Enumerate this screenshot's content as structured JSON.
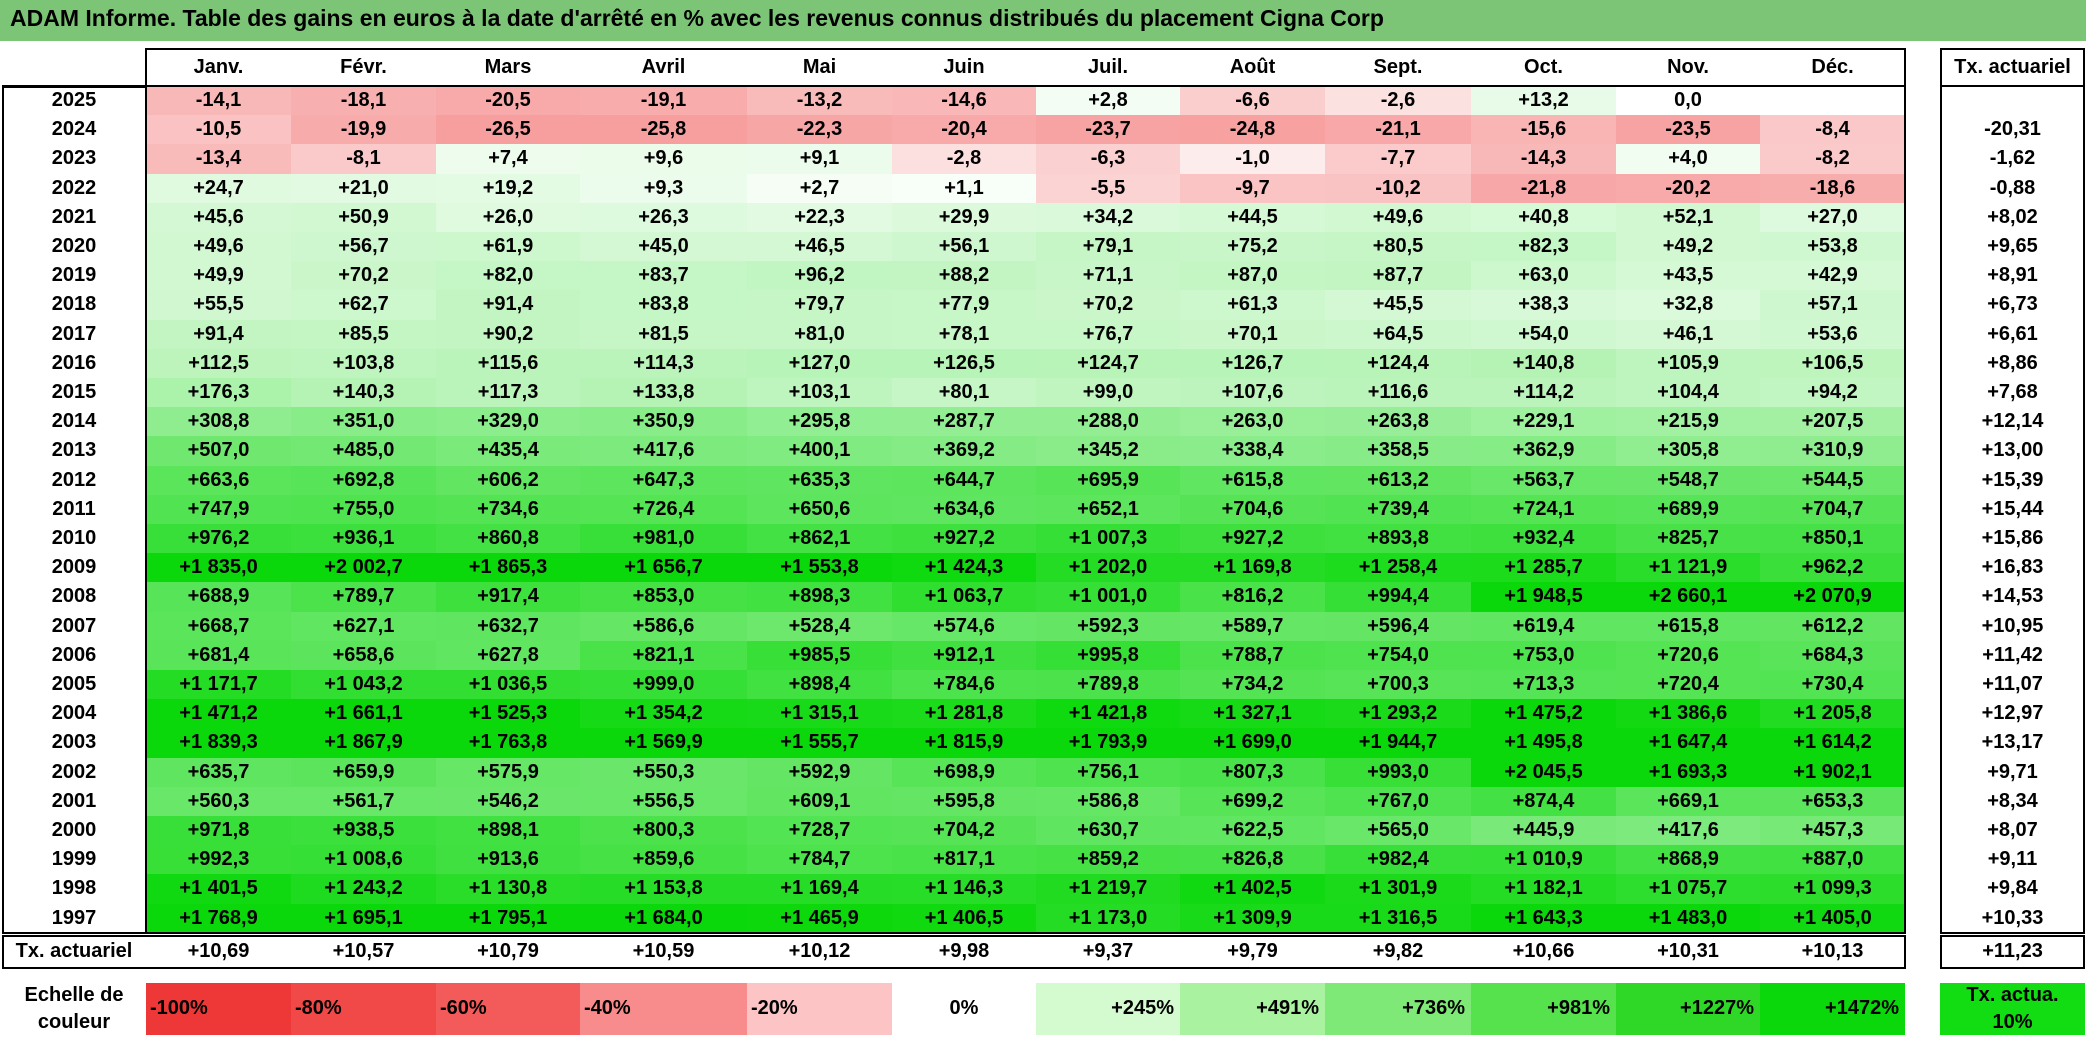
{
  "title": "ADAM Informe. Table des gains en euros à la date d'arrêté en % avec les revenus connus distribués du placement Cigna Corp",
  "chart_data": {
    "type": "heatmap",
    "title": "ADAM Informe. Table des gains en euros à la date d'arrêté en % avec les revenus connus distribués du placement Cigna Corp",
    "columns": [
      "Janv.",
      "Févr.",
      "Mars",
      "Avril",
      "Mai",
      "Juin",
      "Juil.",
      "Août",
      "Sept.",
      "Oct.",
      "Nov.",
      "Déc."
    ],
    "annual_header": "Tx. actuariel",
    "rows": [
      {
        "year": "2025",
        "cells": [
          "-14,1",
          "-18,1",
          "-20,5",
          "-19,1",
          "-13,2",
          "-14,6",
          "+2,8",
          "-6,6",
          "-2,6",
          "+13,2",
          "0,0",
          ""
        ],
        "values": [
          -14.1,
          -18.1,
          -20.5,
          -19.1,
          -13.2,
          -14.6,
          2.8,
          -6.6,
          -2.6,
          13.2,
          0.0,
          null
        ],
        "annual": ""
      },
      {
        "year": "2024",
        "cells": [
          "-10,5",
          "-19,9",
          "-26,5",
          "-25,8",
          "-22,3",
          "-20,4",
          "-23,7",
          "-24,8",
          "-21,1",
          "-15,6",
          "-23,5",
          "-8,4"
        ],
        "values": [
          -10.5,
          -19.9,
          -26.5,
          -25.8,
          -22.3,
          -20.4,
          -23.7,
          -24.8,
          -21.1,
          -15.6,
          -23.5,
          -8.4
        ],
        "annual": "-20,31"
      },
      {
        "year": "2023",
        "cells": [
          "-13,4",
          "-8,1",
          "+7,4",
          "+9,6",
          "+9,1",
          "-2,8",
          "-6,3",
          "-1,0",
          "-7,7",
          "-14,3",
          "+4,0",
          "-8,2"
        ],
        "values": [
          -13.4,
          -8.1,
          7.4,
          9.6,
          9.1,
          -2.8,
          -6.3,
          -1.0,
          -7.7,
          -14.3,
          4.0,
          -8.2
        ],
        "annual": "-1,62"
      },
      {
        "year": "2022",
        "cells": [
          "+24,7",
          "+21,0",
          "+19,2",
          "+9,3",
          "+2,7",
          "+1,1",
          "-5,5",
          "-9,7",
          "-10,2",
          "-21,8",
          "-20,2",
          "-18,6"
        ],
        "values": [
          24.7,
          21.0,
          19.2,
          9.3,
          2.7,
          1.1,
          -5.5,
          -9.7,
          -10.2,
          -21.8,
          -20.2,
          -18.6
        ],
        "annual": "-0,88"
      },
      {
        "year": "2021",
        "cells": [
          "+45,6",
          "+50,9",
          "+26,0",
          "+26,3",
          "+22,3",
          "+29,9",
          "+34,2",
          "+44,5",
          "+49,6",
          "+40,8",
          "+52,1",
          "+27,0"
        ],
        "values": [
          45.6,
          50.9,
          26.0,
          26.3,
          22.3,
          29.9,
          34.2,
          44.5,
          49.6,
          40.8,
          52.1,
          27.0
        ],
        "annual": "+8,02"
      },
      {
        "year": "2020",
        "cells": [
          "+49,6",
          "+56,7",
          "+61,9",
          "+45,0",
          "+46,5",
          "+56,1",
          "+79,1",
          "+75,2",
          "+80,5",
          "+82,3",
          "+49,2",
          "+53,8"
        ],
        "values": [
          49.6,
          56.7,
          61.9,
          45.0,
          46.5,
          56.1,
          79.1,
          75.2,
          80.5,
          82.3,
          49.2,
          53.8
        ],
        "annual": "+9,65"
      },
      {
        "year": "2019",
        "cells": [
          "+49,9",
          "+70,2",
          "+82,0",
          "+83,7",
          "+96,2",
          "+88,2",
          "+71,1",
          "+87,0",
          "+87,7",
          "+63,0",
          "+43,5",
          "+42,9"
        ],
        "values": [
          49.9,
          70.2,
          82.0,
          83.7,
          96.2,
          88.2,
          71.1,
          87.0,
          87.7,
          63.0,
          43.5,
          42.9
        ],
        "annual": "+8,91"
      },
      {
        "year": "2018",
        "cells": [
          "+55,5",
          "+62,7",
          "+91,4",
          "+83,8",
          "+79,7",
          "+77,9",
          "+70,2",
          "+61,3",
          "+45,5",
          "+38,3",
          "+32,8",
          "+57,1"
        ],
        "values": [
          55.5,
          62.7,
          91.4,
          83.8,
          79.7,
          77.9,
          70.2,
          61.3,
          45.5,
          38.3,
          32.8,
          57.1
        ],
        "annual": "+6,73"
      },
      {
        "year": "2017",
        "cells": [
          "+91,4",
          "+85,5",
          "+90,2",
          "+81,5",
          "+81,0",
          "+78,1",
          "+76,7",
          "+70,1",
          "+64,5",
          "+54,0",
          "+46,1",
          "+53,6"
        ],
        "values": [
          91.4,
          85.5,
          90.2,
          81.5,
          81.0,
          78.1,
          76.7,
          70.1,
          64.5,
          54.0,
          46.1,
          53.6
        ],
        "annual": "+6,61"
      },
      {
        "year": "2016",
        "cells": [
          "+112,5",
          "+103,8",
          "+115,6",
          "+114,3",
          "+127,0",
          "+126,5",
          "+124,7",
          "+126,7",
          "+124,4",
          "+140,8",
          "+105,9",
          "+106,5"
        ],
        "values": [
          112.5,
          103.8,
          115.6,
          114.3,
          127.0,
          126.5,
          124.7,
          126.7,
          124.4,
          140.8,
          105.9,
          106.5
        ],
        "annual": "+8,86"
      },
      {
        "year": "2015",
        "cells": [
          "+176,3",
          "+140,3",
          "+117,3",
          "+133,8",
          "+103,1",
          "+80,1",
          "+99,0",
          "+107,6",
          "+116,6",
          "+114,2",
          "+104,4",
          "+94,2"
        ],
        "values": [
          176.3,
          140.3,
          117.3,
          133.8,
          103.1,
          80.1,
          99.0,
          107.6,
          116.6,
          114.2,
          104.4,
          94.2
        ],
        "annual": "+7,68"
      },
      {
        "year": "2014",
        "cells": [
          "+308,8",
          "+351,0",
          "+329,0",
          "+350,9",
          "+295,8",
          "+287,7",
          "+288,0",
          "+263,0",
          "+263,8",
          "+229,1",
          "+215,9",
          "+207,5"
        ],
        "values": [
          308.8,
          351.0,
          329.0,
          350.9,
          295.8,
          287.7,
          288.0,
          263.0,
          263.8,
          229.1,
          215.9,
          207.5
        ],
        "annual": "+12,14"
      },
      {
        "year": "2013",
        "cells": [
          "+507,0",
          "+485,0",
          "+435,4",
          "+417,6",
          "+400,1",
          "+369,2",
          "+345,2",
          "+338,4",
          "+358,5",
          "+362,9",
          "+305,8",
          "+310,9"
        ],
        "values": [
          507.0,
          485.0,
          435.4,
          417.6,
          400.1,
          369.2,
          345.2,
          338.4,
          358.5,
          362.9,
          305.8,
          310.9
        ],
        "annual": "+13,00"
      },
      {
        "year": "2012",
        "cells": [
          "+663,6",
          "+692,8",
          "+606,2",
          "+647,3",
          "+635,3",
          "+644,7",
          "+695,9",
          "+615,8",
          "+613,2",
          "+563,7",
          "+548,7",
          "+544,5"
        ],
        "values": [
          663.6,
          692.8,
          606.2,
          647.3,
          635.3,
          644.7,
          695.9,
          615.8,
          613.2,
          563.7,
          548.7,
          544.5
        ],
        "annual": "+15,39"
      },
      {
        "year": "2011",
        "cells": [
          "+747,9",
          "+755,0",
          "+734,6",
          "+726,4",
          "+650,6",
          "+634,6",
          "+652,1",
          "+704,6",
          "+739,4",
          "+724,1",
          "+689,9",
          "+704,7"
        ],
        "values": [
          747.9,
          755.0,
          734.6,
          726.4,
          650.6,
          634.6,
          652.1,
          704.6,
          739.4,
          724.1,
          689.9,
          704.7
        ],
        "annual": "+15,44"
      },
      {
        "year": "2010",
        "cells": [
          "+976,2",
          "+936,1",
          "+860,8",
          "+981,0",
          "+862,1",
          "+927,2",
          "+1 007,3",
          "+927,2",
          "+893,8",
          "+932,4",
          "+825,7",
          "+850,1"
        ],
        "values": [
          976.2,
          936.1,
          860.8,
          981.0,
          862.1,
          927.2,
          1007.3,
          927.2,
          893.8,
          932.4,
          825.7,
          850.1
        ],
        "annual": "+15,86"
      },
      {
        "year": "2009",
        "cells": [
          "+1 835,0",
          "+2 002,7",
          "+1 865,3",
          "+1 656,7",
          "+1 553,8",
          "+1 424,3",
          "+1 202,0",
          "+1 169,8",
          "+1 258,4",
          "+1 285,7",
          "+1 121,9",
          "+962,2"
        ],
        "values": [
          1835.0,
          2002.7,
          1865.3,
          1656.7,
          1553.8,
          1424.3,
          1202.0,
          1169.8,
          1258.4,
          1285.7,
          1121.9,
          962.2
        ],
        "annual": "+16,83"
      },
      {
        "year": "2008",
        "cells": [
          "+688,9",
          "+789,7",
          "+917,4",
          "+853,0",
          "+898,3",
          "+1 063,7",
          "+1 001,0",
          "+816,2",
          "+994,4",
          "+1 948,5",
          "+2 660,1",
          "+2 070,9"
        ],
        "values": [
          688.9,
          789.7,
          917.4,
          853.0,
          898.3,
          1063.7,
          1001.0,
          816.2,
          994.4,
          1948.5,
          2660.1,
          2070.9
        ],
        "annual": "+14,53"
      },
      {
        "year": "2007",
        "cells": [
          "+668,7",
          "+627,1",
          "+632,7",
          "+586,6",
          "+528,4",
          "+574,6",
          "+592,3",
          "+589,7",
          "+596,4",
          "+619,4",
          "+615,8",
          "+612,2"
        ],
        "values": [
          668.7,
          627.1,
          632.7,
          586.6,
          528.4,
          574.6,
          592.3,
          589.7,
          596.4,
          619.4,
          615.8,
          612.2
        ],
        "annual": "+10,95"
      },
      {
        "year": "2006",
        "cells": [
          "+681,4",
          "+658,6",
          "+627,8",
          "+821,1",
          "+985,5",
          "+912,1",
          "+995,8",
          "+788,7",
          "+754,0",
          "+753,0",
          "+720,6",
          "+684,3"
        ],
        "values": [
          681.4,
          658.6,
          627.8,
          821.1,
          985.5,
          912.1,
          995.8,
          788.7,
          754.0,
          753.0,
          720.6,
          684.3
        ],
        "annual": "+11,42"
      },
      {
        "year": "2005",
        "cells": [
          "+1 171,7",
          "+1 043,2",
          "+1 036,5",
          "+999,0",
          "+898,4",
          "+784,6",
          "+789,8",
          "+734,2",
          "+700,3",
          "+713,3",
          "+720,4",
          "+730,4"
        ],
        "values": [
          1171.7,
          1043.2,
          1036.5,
          999.0,
          898.4,
          784.6,
          789.8,
          734.2,
          700.3,
          713.3,
          720.4,
          730.4
        ],
        "annual": "+11,07"
      },
      {
        "year": "2004",
        "cells": [
          "+1 471,2",
          "+1 661,1",
          "+1 525,3",
          "+1 354,2",
          "+1 315,1",
          "+1 281,8",
          "+1 421,8",
          "+1 327,1",
          "+1 293,2",
          "+1 475,2",
          "+1 386,6",
          "+1 205,8"
        ],
        "values": [
          1471.2,
          1661.1,
          1525.3,
          1354.2,
          1315.1,
          1281.8,
          1421.8,
          1327.1,
          1293.2,
          1475.2,
          1386.6,
          1205.8
        ],
        "annual": "+12,97"
      },
      {
        "year": "2003",
        "cells": [
          "+1 839,3",
          "+1 867,9",
          "+1 763,8",
          "+1 569,9",
          "+1 555,7",
          "+1 815,9",
          "+1 793,9",
          "+1 699,0",
          "+1 944,7",
          "+1 495,8",
          "+1 647,4",
          "+1 614,2"
        ],
        "values": [
          1839.3,
          1867.9,
          1763.8,
          1569.9,
          1555.7,
          1815.9,
          1793.9,
          1699.0,
          1944.7,
          1495.8,
          1647.4,
          1614.2
        ],
        "annual": "+13,17"
      },
      {
        "year": "2002",
        "cells": [
          "+635,7",
          "+659,9",
          "+575,9",
          "+550,3",
          "+592,9",
          "+698,9",
          "+756,1",
          "+807,3",
          "+993,0",
          "+2 045,5",
          "+1 693,3",
          "+1 902,1"
        ],
        "values": [
          635.7,
          659.9,
          575.9,
          550.3,
          592.9,
          698.9,
          756.1,
          807.3,
          993.0,
          2045.5,
          1693.3,
          1902.1
        ],
        "annual": "+9,71"
      },
      {
        "year": "2001",
        "cells": [
          "+560,3",
          "+561,7",
          "+546,2",
          "+556,5",
          "+609,1",
          "+595,8",
          "+586,8",
          "+699,2",
          "+767,0",
          "+874,4",
          "+669,1",
          "+653,3"
        ],
        "values": [
          560.3,
          561.7,
          546.2,
          556.5,
          609.1,
          595.8,
          586.8,
          699.2,
          767.0,
          874.4,
          669.1,
          653.3
        ],
        "annual": "+8,34"
      },
      {
        "year": "2000",
        "cells": [
          "+971,8",
          "+938,5",
          "+898,1",
          "+800,3",
          "+728,7",
          "+704,2",
          "+630,7",
          "+622,5",
          "+565,0",
          "+445,9",
          "+417,6",
          "+457,3"
        ],
        "values": [
          971.8,
          938.5,
          898.1,
          800.3,
          728.7,
          704.2,
          630.7,
          622.5,
          565.0,
          445.9,
          417.6,
          457.3
        ],
        "annual": "+8,07"
      },
      {
        "year": "1999",
        "cells": [
          "+992,3",
          "+1 008,6",
          "+913,6",
          "+859,6",
          "+784,7",
          "+817,1",
          "+859,2",
          "+826,8",
          "+982,4",
          "+1 010,9",
          "+868,9",
          "+887,0"
        ],
        "values": [
          992.3,
          1008.6,
          913.6,
          859.6,
          784.7,
          817.1,
          859.2,
          826.8,
          982.4,
          1010.9,
          868.9,
          887.0
        ],
        "annual": "+9,11"
      },
      {
        "year": "1998",
        "cells": [
          "+1 401,5",
          "+1 243,2",
          "+1 130,8",
          "+1 153,8",
          "+1 169,4",
          "+1 146,3",
          "+1 219,7",
          "+1 402,5",
          "+1 301,9",
          "+1 182,1",
          "+1 075,7",
          "+1 099,3"
        ],
        "values": [
          1401.5,
          1243.2,
          1130.8,
          1153.8,
          1169.4,
          1146.3,
          1219.7,
          1402.5,
          1301.9,
          1182.1,
          1075.7,
          1099.3
        ],
        "annual": "+9,84"
      },
      {
        "year": "1997",
        "cells": [
          "+1 768,9",
          "+1 695,1",
          "+1 795,1",
          "+1 684,0",
          "+1 465,9",
          "+1 406,5",
          "+1 173,0",
          "+1 309,9",
          "+1 316,5",
          "+1 643,3",
          "+1 483,0",
          "+1 405,0"
        ],
        "values": [
          1768.9,
          1695.1,
          1795.1,
          1684.0,
          1465.9,
          1406.5,
          1173.0,
          1309.9,
          1316.5,
          1643.3,
          1483.0,
          1405.0
        ],
        "annual": "+10,33"
      }
    ],
    "footer": {
      "label": "Tx. actuariel",
      "cells": [
        "+10,69",
        "+10,57",
        "+10,79",
        "+10,59",
        "+10,12",
        "+9,98",
        "+9,37",
        "+9,79",
        "+9,82",
        "+10,66",
        "+10,31",
        "+10,13"
      ],
      "total": "+11,23"
    },
    "legend": {
      "label": "Echelle de couleur",
      "items": [
        {
          "label": "-100%",
          "color": "#ee3838"
        },
        {
          "label": "-80%",
          "color": "#f14848"
        },
        {
          "label": "-60%",
          "color": "#f35b5b"
        },
        {
          "label": "-40%",
          "color": "#f88c8c"
        },
        {
          "label": "-20%",
          "color": "#fcc4c4"
        },
        {
          "label": "0%",
          "color": "#ffffff"
        },
        {
          "label": "+245%",
          "color": "#d4fad0"
        },
        {
          "label": "+491%",
          "color": "#a8f2a0"
        },
        {
          "label": "+736%",
          "color": "#7fe977"
        },
        {
          "label": "+981%",
          "color": "#55e24c"
        },
        {
          "label": "+1227%",
          "color": "#2fd826"
        },
        {
          "label": "+1472%",
          "color": "#0bd80b"
        }
      ],
      "extra": {
        "label": "Tx. actua. 10%",
        "color": "#12dc12"
      }
    },
    "color_scale": {
      "neg_end": "#ee3838",
      "zero": "#ffffff",
      "pos_end": "#0bd80b",
      "pos_max": 1472,
      "neg_min": -100
    }
  }
}
